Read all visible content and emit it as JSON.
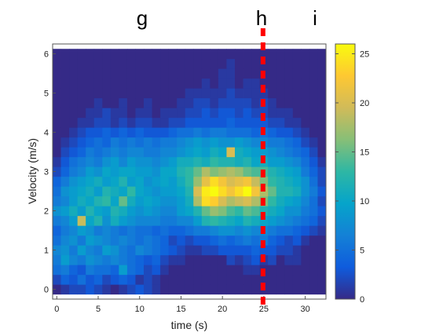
{
  "panel_labels": [
    "g",
    "h",
    "i"
  ],
  "chart_data": {
    "type": "heatmap",
    "title": "",
    "xlabel": "time (s)",
    "ylabel": "Velocity (m/s)",
    "xlim": [
      -0.5,
      32.5
    ],
    "ylim": [
      -0.25,
      6.25
    ],
    "x_ticks": [
      0,
      5,
      10,
      15,
      20,
      25,
      30
    ],
    "y_ticks": [
      0,
      1,
      2,
      3,
      4,
      5,
      6
    ],
    "x_tick_labels": [
      "0",
      "5",
      "10",
      "15",
      "20",
      "25",
      "30"
    ],
    "y_tick_labels": [
      "0",
      "1",
      "2",
      "3",
      "4",
      "5",
      "6"
    ],
    "x_bin_width": 1,
    "y_bin_height": 0.25,
    "x_bins": [
      0,
      1,
      2,
      3,
      4,
      5,
      6,
      7,
      8,
      9,
      10,
      11,
      12,
      13,
      14,
      15,
      16,
      17,
      18,
      19,
      20,
      21,
      22,
      23,
      24,
      25,
      26,
      27,
      28,
      29,
      30,
      31,
      32
    ],
    "y_bins": [
      0,
      0.25,
      0.5,
      0.75,
      1,
      1.25,
      1.5,
      1.75,
      2,
      2.25,
      2.5,
      2.75,
      3,
      3.25,
      3.5,
      3.75,
      4,
      4.25,
      4.5,
      4.75,
      5,
      5.25,
      5.5,
      5.75,
      6
    ],
    "colormap": "parula",
    "colormap_stops": [
      "#352a87",
      "#0f5cdd",
      "#1481d6",
      "#06a4ca",
      "#2eb7a4",
      "#87bf77",
      "#d1bb59",
      "#fec832",
      "#f9fb0e"
    ],
    "clim": [
      0,
      26
    ],
    "colorbar": {
      "ticks": [
        0,
        5,
        10,
        15,
        20,
        25
      ],
      "tick_labels": [
        "0",
        "5",
        "10",
        "15",
        "20",
        "25"
      ]
    },
    "vline": {
      "x": 24.9,
      "color": "#ff0000",
      "style": "dashed"
    },
    "values": [
      [
        0,
        1,
        2,
        2,
        3,
        2,
        1,
        0,
        1,
        2,
        3,
        2,
        1,
        0,
        0,
        0,
        0,
        0,
        0,
        0,
        0,
        0,
        0,
        0,
        0,
        0,
        0,
        0,
        0,
        0,
        0,
        0,
        0
      ],
      [
        2,
        4,
        3,
        5,
        3,
        4,
        2,
        3,
        4,
        3,
        1,
        2,
        1,
        0,
        0,
        0,
        0,
        0,
        0,
        0,
        0,
        0,
        0,
        0,
        0,
        0,
        0,
        0,
        0,
        0,
        0,
        0,
        0
      ],
      [
        5,
        6,
        4,
        3,
        6,
        5,
        5,
        4,
        9,
        5,
        4,
        2,
        3,
        1,
        0,
        0,
        0,
        0,
        0,
        0,
        0,
        0,
        0,
        1,
        1,
        0,
        0,
        0,
        0,
        0,
        0,
        0,
        0
      ],
      [
        6,
        9,
        7,
        6,
        8,
        7,
        6,
        7,
        6,
        5,
        4,
        3,
        4,
        2,
        1,
        1,
        0,
        0,
        0,
        0,
        0,
        2,
        1,
        2,
        3,
        1,
        2,
        0,
        1,
        1,
        0,
        0,
        0
      ],
      [
        7,
        8,
        6,
        9,
        7,
        6,
        9,
        8,
        6,
        5,
        7,
        6,
        5,
        4,
        3,
        2,
        1,
        1,
        2,
        2,
        3,
        3,
        3,
        3,
        4,
        3,
        3,
        2,
        2,
        1,
        0,
        0,
        0
      ],
      [
        5,
        7,
        8,
        6,
        9,
        8,
        7,
        6,
        7,
        6,
        5,
        6,
        5,
        4,
        2,
        3,
        2,
        3,
        3,
        4,
        5,
        4,
        5,
        6,
        5,
        6,
        4,
        3,
        2,
        3,
        1,
        0,
        0
      ],
      [
        4,
        6,
        7,
        9,
        8,
        6,
        7,
        6,
        5,
        6,
        5,
        5,
        4,
        5,
        4,
        4,
        5,
        6,
        6,
        7,
        8,
        8,
        7,
        8,
        7,
        7,
        6,
        5,
        5,
        4,
        3,
        2,
        1
      ],
      [
        6,
        7,
        9,
        19,
        10,
        12,
        8,
        11,
        9,
        8,
        7,
        7,
        7,
        6,
        6,
        7,
        7,
        9,
        12,
        13,
        12,
        11,
        10,
        12,
        11,
        10,
        9,
        8,
        7,
        6,
        5,
        4,
        2
      ],
      [
        8,
        9,
        11,
        9,
        12,
        10,
        9,
        12,
        11,
        9,
        8,
        9,
        8,
        7,
        7,
        9,
        10,
        12,
        15,
        17,
        16,
        14,
        13,
        15,
        14,
        12,
        11,
        10,
        8,
        8,
        6,
        5,
        3
      ],
      [
        6,
        7,
        9,
        11,
        10,
        12,
        13,
        10,
        15,
        11,
        9,
        10,
        9,
        8,
        8,
        9,
        11,
        18,
        24,
        23,
        20,
        18,
        19,
        20,
        18,
        16,
        13,
        11,
        10,
        9,
        7,
        5,
        2
      ],
      [
        5,
        8,
        9,
        10,
        11,
        9,
        12,
        11,
        10,
        13,
        10,
        9,
        8,
        9,
        9,
        10,
        12,
        20,
        25,
        26,
        24,
        22,
        24,
        26,
        22,
        18,
        15,
        12,
        12,
        11,
        8,
        6,
        3
      ],
      [
        4,
        6,
        8,
        9,
        10,
        11,
        9,
        10,
        12,
        9,
        10,
        8,
        9,
        10,
        9,
        11,
        13,
        17,
        21,
        24,
        22,
        20,
        21,
        22,
        19,
        16,
        13,
        12,
        11,
        10,
        8,
        5,
        2
      ],
      [
        2,
        4,
        6,
        7,
        9,
        8,
        10,
        9,
        10,
        10,
        9,
        9,
        8,
        10,
        10,
        12,
        13,
        15,
        18,
        16,
        17,
        18,
        17,
        15,
        14,
        14,
        12,
        11,
        10,
        9,
        6,
        4,
        2
      ],
      [
        1,
        3,
        5,
        6,
        7,
        6,
        8,
        9,
        7,
        9,
        8,
        8,
        7,
        8,
        9,
        11,
        11,
        12,
        11,
        13,
        12,
        12,
        11,
        12,
        10,
        11,
        9,
        9,
        8,
        7,
        5,
        3,
        1
      ],
      [
        0,
        2,
        3,
        4,
        6,
        5,
        6,
        7,
        6,
        7,
        7,
        6,
        6,
        7,
        7,
        8,
        9,
        10,
        9,
        11,
        10,
        20,
        11,
        10,
        9,
        9,
        8,
        7,
        6,
        5,
        4,
        2,
        0
      ],
      [
        0,
        1,
        2,
        3,
        4,
        5,
        4,
        6,
        5,
        6,
        5,
        6,
        5,
        6,
        6,
        7,
        8,
        9,
        8,
        9,
        8,
        8,
        9,
        8,
        7,
        7,
        6,
        6,
        5,
        4,
        2,
        1,
        0
      ],
      [
        0,
        0,
        1,
        2,
        3,
        3,
        4,
        3,
        4,
        3,
        4,
        3,
        3,
        3,
        4,
        5,
        5,
        6,
        5,
        6,
        6,
        5,
        5,
        5,
        4,
        5,
        4,
        3,
        3,
        2,
        1,
        0,
        0
      ],
      [
        0,
        0,
        0,
        1,
        1,
        2,
        2,
        1,
        2,
        1,
        2,
        2,
        1,
        1,
        2,
        2,
        3,
        3,
        3,
        3,
        3,
        4,
        3,
        3,
        3,
        3,
        2,
        2,
        1,
        1,
        0,
        0,
        0
      ],
      [
        0,
        0,
        0,
        0,
        1,
        1,
        2,
        1,
        1,
        0,
        1,
        1,
        0,
        1,
        1,
        1,
        2,
        2,
        3,
        2,
        3,
        3,
        2,
        3,
        2,
        2,
        1,
        1,
        1,
        0,
        0,
        0,
        0
      ],
      [
        0,
        0,
        0,
        0,
        0,
        1,
        0,
        0,
        1,
        0,
        0,
        1,
        0,
        0,
        0,
        1,
        1,
        2,
        2,
        1,
        2,
        2,
        2,
        2,
        1,
        2,
        1,
        0,
        0,
        0,
        0,
        0,
        0
      ],
      [
        0,
        0,
        0,
        0,
        0,
        0,
        0,
        0,
        0,
        0,
        0,
        0,
        0,
        0,
        0,
        0,
        1,
        1,
        1,
        1,
        1,
        2,
        1,
        1,
        1,
        1,
        0,
        0,
        0,
        0,
        0,
        0,
        0
      ],
      [
        0,
        0,
        0,
        0,
        0,
        0,
        0,
        0,
        0,
        0,
        0,
        0,
        0,
        0,
        0,
        0,
        0,
        0,
        1,
        0,
        1,
        1,
        0,
        1,
        1,
        0,
        0,
        0,
        0,
        0,
        0,
        0,
        0
      ],
      [
        0,
        0,
        0,
        0,
        0,
        0,
        0,
        0,
        0,
        0,
        0,
        0,
        0,
        0,
        0,
        0,
        0,
        0,
        0,
        0,
        1,
        1,
        0,
        0,
        0,
        0,
        0,
        0,
        0,
        0,
        0,
        0,
        0
      ],
      [
        0,
        0,
        0,
        0,
        0,
        0,
        0,
        0,
        0,
        0,
        0,
        0,
        0,
        0,
        0,
        0,
        0,
        0,
        0,
        0,
        0,
        1,
        0,
        0,
        0,
        0,
        0,
        0,
        0,
        0,
        0,
        0,
        0
      ],
      [
        0,
        0,
        0,
        0,
        0,
        0,
        0,
        0,
        0,
        0,
        0,
        0,
        0,
        0,
        0,
        0,
        0,
        0,
        0,
        0,
        0,
        0,
        0,
        0,
        0,
        0,
        0,
        0,
        0,
        0,
        0,
        0,
        0
      ]
    ]
  }
}
